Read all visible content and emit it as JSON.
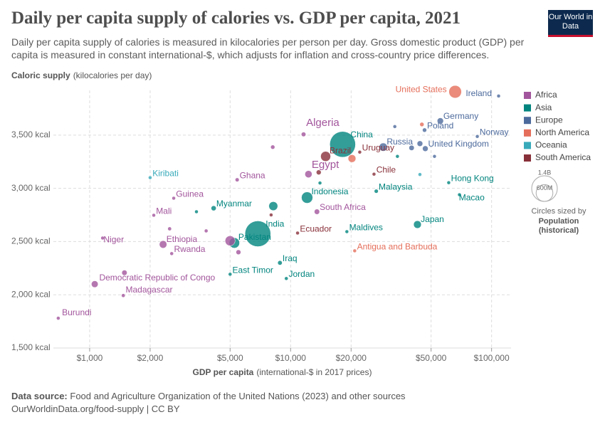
{
  "header": {
    "title": "Daily per capita supply of calories vs. GDP per capita, 2021",
    "subtitle": "Daily per capita supply of calories is measured in kilocalories per person per day. Gross domestic product (GDP) per capita is measured in constant international-$, which adjusts for inflation and cross-country price differences.",
    "logo": "Our World in Data"
  },
  "chart_data": {
    "type": "scatter",
    "log_x": true,
    "grid": true,
    "y_label_bold": "Caloric supply",
    "y_label_rest": "(kilocalories per day)",
    "x_label_bold": "GDP per capita",
    "x_label_rest": "(international-$ in 2017 prices)",
    "xlim": [
      660,
      125000
    ],
    "ylim": [
      1500,
      3920
    ],
    "xticks": [
      {
        "value": 1000,
        "label": "$1,000"
      },
      {
        "value": 2000,
        "label": "$2,000"
      },
      {
        "value": 5000,
        "label": "$5,000"
      },
      {
        "value": 10000,
        "label": "$10,000"
      },
      {
        "value": 20000,
        "label": "$20,000"
      },
      {
        "value": 50000,
        "label": "$50,000"
      },
      {
        "value": 100000,
        "label": "$100,000"
      }
    ],
    "yticks": [
      {
        "value": 1500,
        "label": "1,500 kcal"
      },
      {
        "value": 2000,
        "label": "2,000 kcal"
      },
      {
        "value": 2500,
        "label": "2,500 kcal"
      },
      {
        "value": 3000,
        "label": "3,000 kcal"
      },
      {
        "value": 3500,
        "label": "3,500 kcal"
      }
    ],
    "series": [
      {
        "name": "Africa",
        "color": "#a2559c",
        "labels": [
          "Algeria",
          "Egypt",
          "Ghana",
          "Guinea",
          "Mali",
          "Niger",
          "Ethiopia",
          "Rwanda",
          "Democratic Republic of Congo",
          "Madagascar",
          "Burundi",
          "South Africa",
          null,
          null,
          null,
          null,
          null,
          null
        ],
        "x": [
          11600,
          12270,
          5420,
          2620,
          2085,
          1160,
          2320,
          2560,
          1060,
          1470,
          698,
          13520,
          5000,
          1490,
          8150,
          5500,
          3800,
          2500
        ],
        "values": [
          3507,
          3133,
          3080,
          2907,
          2747,
          2533,
          2473,
          2387,
          2100,
          1993,
          1780,
          2780,
          2507,
          2207,
          3387,
          2400,
          2600,
          2620
        ],
        "population": [
          44000000,
          109000000,
          33000000,
          14000000,
          22000000,
          25000000,
          120000000,
          13000000,
          96000000,
          29000000,
          12000000,
          60000000,
          213000000,
          60000000,
          37000000,
          50000000,
          28000000,
          30000000
        ]
      },
      {
        "name": "Asia",
        "color": "#00847e",
        "labels": [
          "China",
          "India",
          "Pakistan",
          "Indonesia",
          "Myanmar",
          "Japan",
          "Malaysia",
          "Hong Kong",
          "Macao",
          "Maldives",
          "Iraq",
          "Jordan",
          "East Timor",
          null,
          null,
          null,
          null
        ],
        "x": [
          18150,
          6870,
          5250,
          12080,
          4140,
          42760,
          26680,
          61200,
          69200,
          19050,
          8850,
          9520,
          5000,
          8200,
          14000,
          34000,
          3400
        ],
        "values": [
          3413,
          2573,
          2487,
          2913,
          2813,
          2660,
          2973,
          3053,
          2940,
          2593,
          2300,
          2153,
          2193,
          2833,
          3050,
          3300,
          2780
        ],
        "population": [
          1410000000,
          1410000000,
          230000000,
          274000000,
          54000000,
          125000000,
          34000000,
          7000000,
          700000,
          500000,
          43000000,
          11000000,
          1300000,
          169000000,
          22000000,
          10000000,
          17000000
        ]
      },
      {
        "name": "Europe",
        "color": "#4c6a9c",
        "labels": [
          "Ireland",
          "Germany",
          "Poland",
          "Norway",
          "Russia",
          "United Kingdom",
          null,
          null,
          null,
          null
        ],
        "x": [
          108400,
          55600,
          46400,
          84900,
          28900,
          46800,
          44000,
          40000,
          52000,
          33000
        ],
        "values": [
          3867,
          3633,
          3547,
          3487,
          3387,
          3373,
          3420,
          3380,
          3300,
          3580
        ],
        "population": [
          5000000,
          83000000,
          38000000,
          5400000,
          145000000,
          67000000,
          67000000,
          59000000,
          10000000,
          10000000
        ]
      },
      {
        "name": "North America",
        "color": "#e56e5a",
        "labels": [
          "United States",
          "Antigua and Barbuda",
          null,
          null
        ],
        "x": [
          65900,
          20840,
          20200,
          45000
        ],
        "values": [
          3907,
          2413,
          3280,
          3600
        ],
        "population": [
          337000000,
          100000,
          127000000,
          38000000
        ]
      },
      {
        "name": "Oceania",
        "color": "#38aaba",
        "labels": [
          "Kiribati",
          null
        ],
        "x": [
          2000,
          44000
        ],
        "values": [
          3100,
          3130
        ],
        "population": [
          130000,
          26000000
        ]
      },
      {
        "name": "South America",
        "color": "#883039",
        "labels": [
          "Brazil",
          "Uruguay",
          "Chile",
          "Ecuador",
          null,
          null
        ],
        "x": [
          14940,
          22080,
          26000,
          10830,
          13800,
          8000
        ],
        "values": [
          3300,
          3340,
          3133,
          2580,
          3150,
          2750
        ],
        "population": [
          214000000,
          3400000,
          19000000,
          18000000,
          51000000,
          20000000
        ]
      }
    ],
    "size_legend": {
      "title": "Circles sized by",
      "variable": "Population",
      "note": "(historical)",
      "circles": [
        {
          "value": 1400000000,
          "label": "1.4B"
        },
        {
          "value": 600000000,
          "label": "600M"
        }
      ]
    }
  },
  "footer": {
    "source_bold": "Data source:",
    "source_rest": "Food and Agriculture Organization of the United Nations (2023) and other sources",
    "link": "OurWorldinData.org/food-supply | CC BY"
  }
}
